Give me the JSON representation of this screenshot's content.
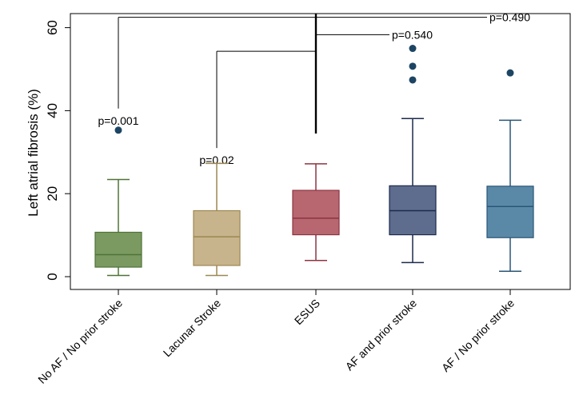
{
  "chart_data": {
    "type": "box",
    "title": "",
    "xlabel": "",
    "ylabel": "Left atrial fibrosis (%)",
    "ylim": [
      0,
      62
    ],
    "yticks": [
      0,
      20,
      40,
      60
    ],
    "grid": false,
    "categories": [
      {
        "name": "No AF / No prior stroke",
        "color": "#7a9a62",
        "stroke": "#4f7237",
        "min": 0.3,
        "q1": 2.3,
        "median": 5.3,
        "q3": 10.7,
        "max": 23.4,
        "outliers": [
          35.3
        ]
      },
      {
        "name": "Lacunar Stroke",
        "color": "#c8b48c",
        "stroke": "#9c8754",
        "min": 0.3,
        "q1": 2.7,
        "median": 9.6,
        "q3": 15.9,
        "max": 27.3,
        "outliers": []
      },
      {
        "name": "ESUS",
        "color": "#b86670",
        "stroke": "#8c3442",
        "min": 3.9,
        "q1": 10.1,
        "median": 14.1,
        "q3": 20.8,
        "max": 27.2,
        "outliers": []
      },
      {
        "name": "AF and prior stroke",
        "color": "#5e6d8e",
        "stroke": "#1c2a4c",
        "min": 3.4,
        "q1": 10.1,
        "median": 15.9,
        "q3": 21.9,
        "max": 38.1,
        "outliers": [
          47.4,
          50.7,
          55.0
        ]
      },
      {
        "name": "AF / No prior stroke",
        "color": "#5a89a8",
        "stroke": "#2a5576",
        "min": 1.3,
        "q1": 9.4,
        "median": 16.9,
        "q3": 21.8,
        "max": 37.7,
        "outliers": [
          49.1
        ]
      }
    ],
    "comparisons": [
      {
        "from": "ESUS",
        "to": "No AF / No prior stroke",
        "label": "p=0.001",
        "bracket_level": 62.5,
        "label_level": 40.5
      },
      {
        "from": "ESUS",
        "to": "Lacunar Stroke",
        "label": "p=0.02",
        "bracket_level": 54.3,
        "label_level": 31.0
      },
      {
        "from": "ESUS",
        "to": "AF and prior stroke",
        "label": "p=0.540",
        "bracket_level": 58.3,
        "label_level": 58.3
      },
      {
        "from": "ESUS",
        "to": "AF / No prior stroke",
        "label": "p=0.490",
        "bracket_level": 62.5,
        "label_level": 62.5
      }
    ]
  }
}
